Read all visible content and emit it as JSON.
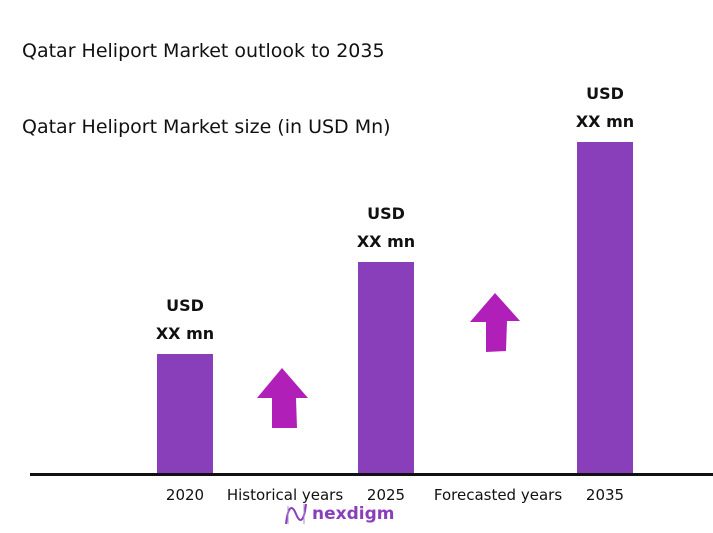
{
  "chart_data": {
    "type": "bar",
    "title": "Qatar Heliport Market outlook to 2035",
    "subtitle": "Qatar Heliport Market size (in USD Mn)",
    "categories": [
      "2020",
      "2025",
      "2035"
    ],
    "values": [
      36,
      64,
      100
    ],
    "data_labels": [
      [
        "USD",
        "XX mn"
      ],
      [
        "USD",
        "XX mn"
      ],
      [
        "USD",
        "XX mn"
      ]
    ],
    "ylim": [
      0,
      100
    ],
    "grid": false,
    "period_labels": [
      "Historical years",
      "Forecasted years"
    ],
    "bar_color": "#8a3fba",
    "arrow_color": "#b020b8",
    "arrow_icons": [
      "up-arrow-icon",
      "up-arrow-icon"
    ]
  },
  "logo": {
    "text": "nexdigm"
  }
}
